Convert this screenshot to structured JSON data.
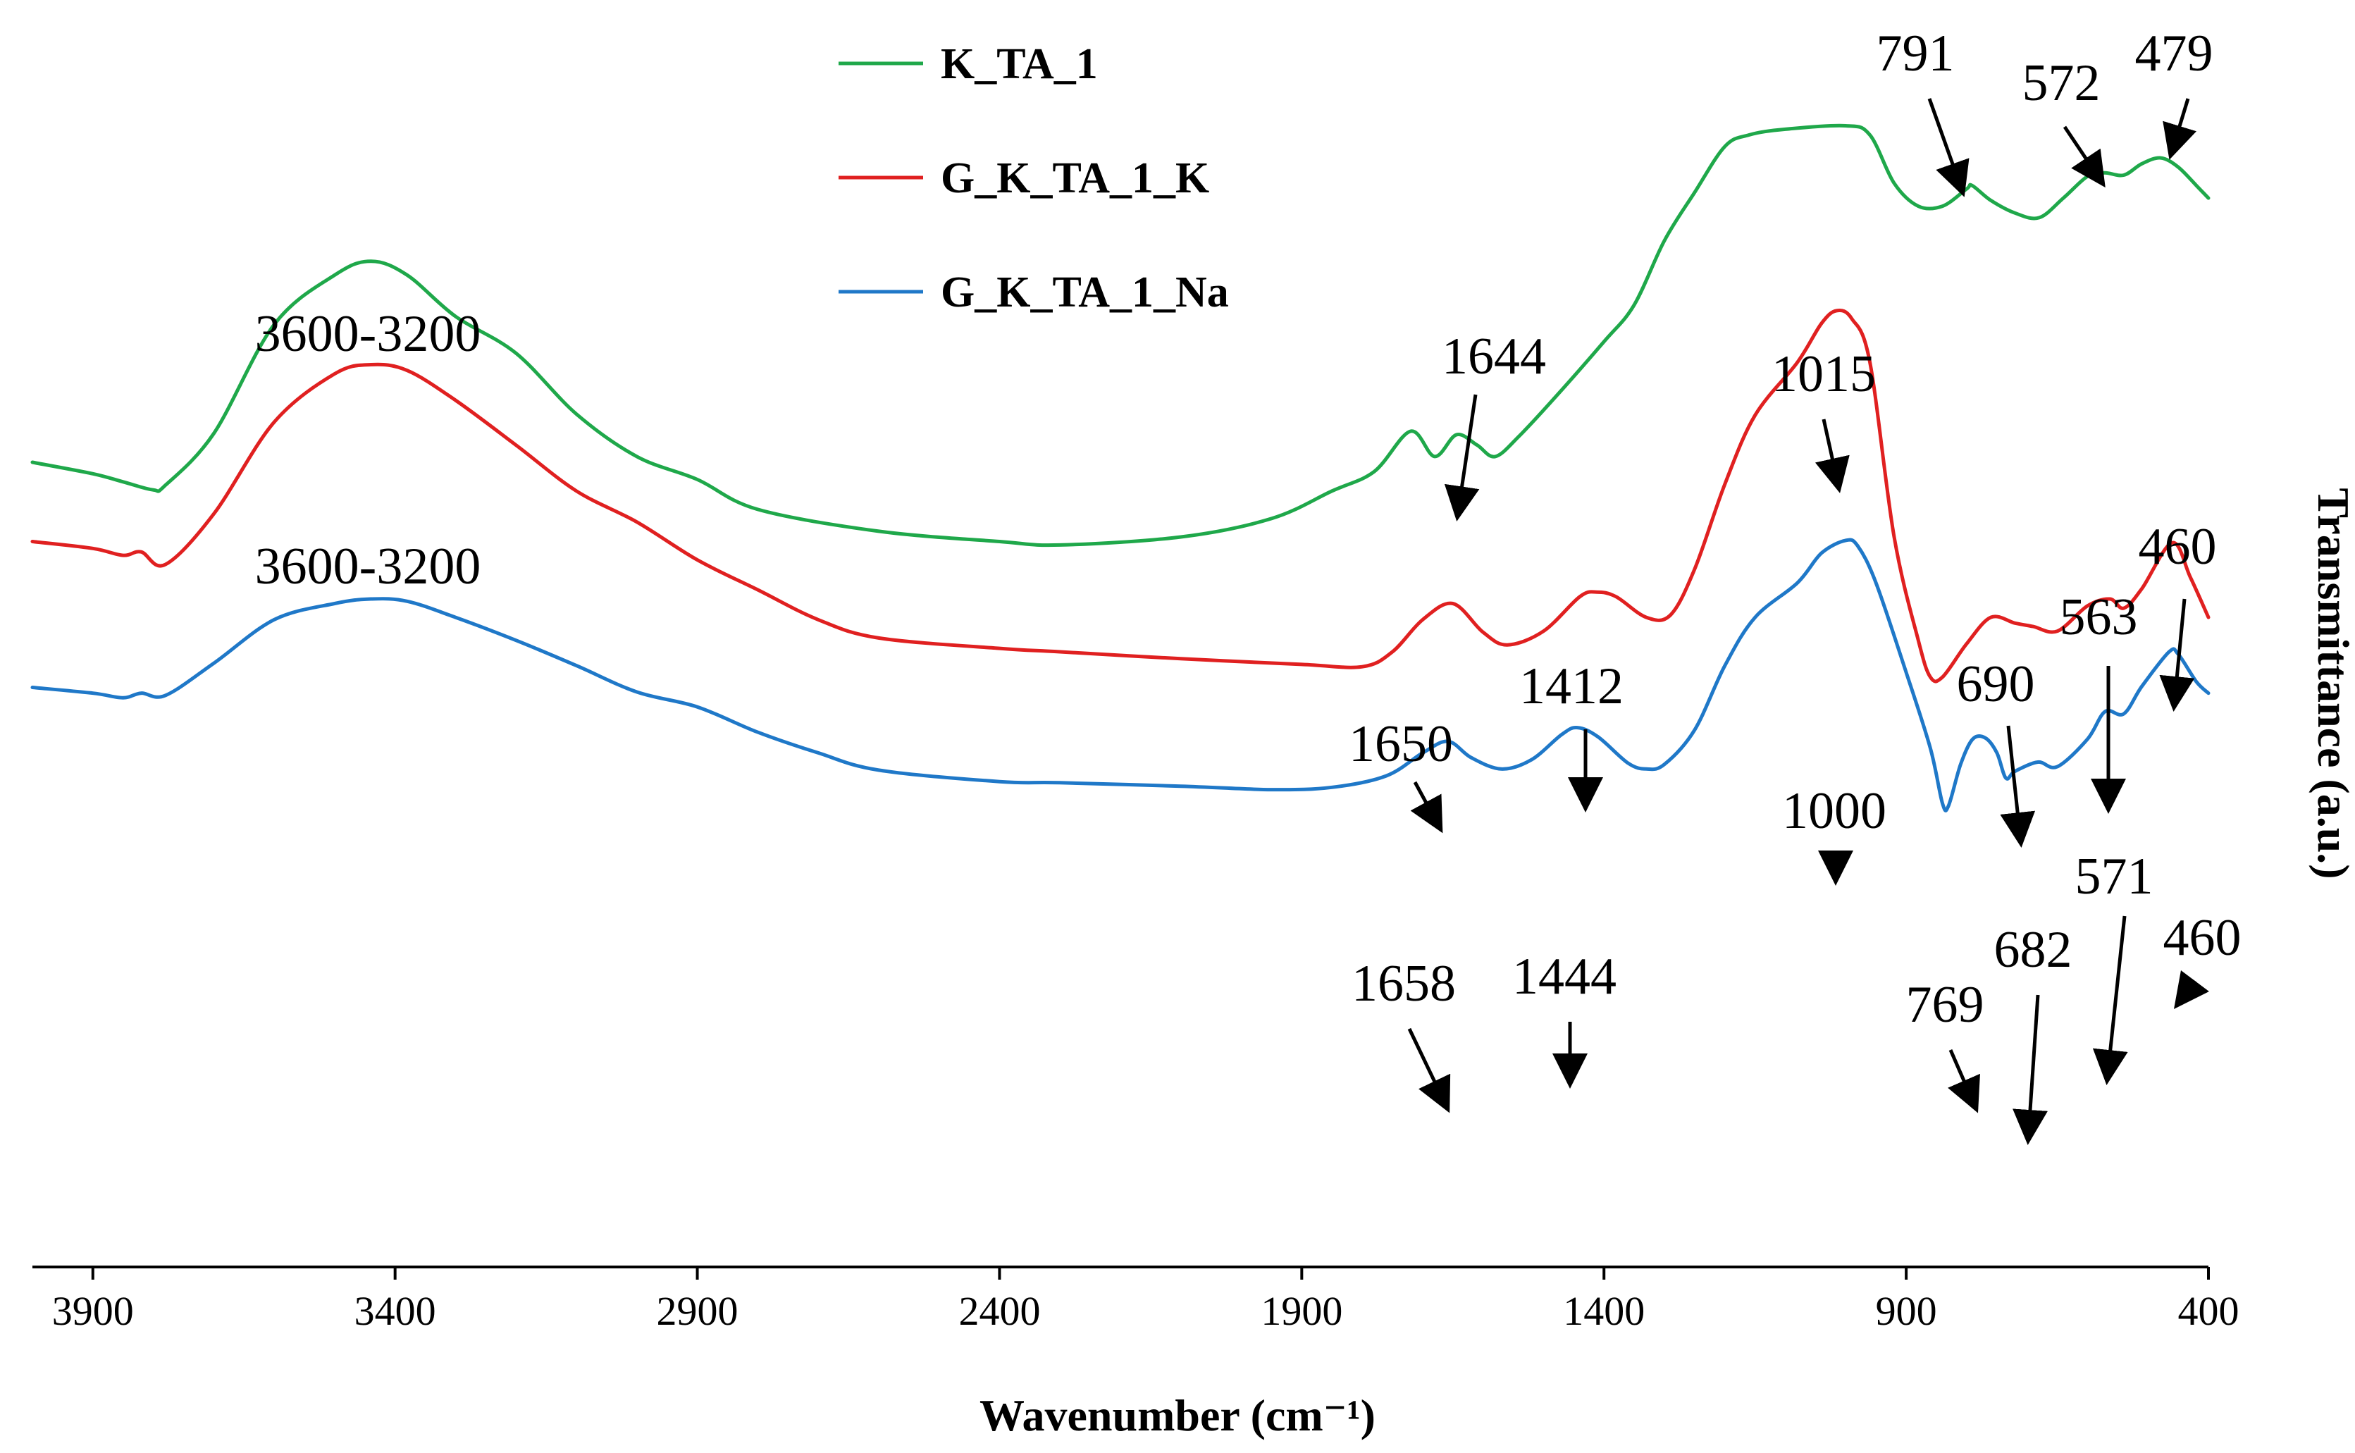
{
  "chart_data": {
    "type": "line",
    "title": "",
    "xlabel": "Wavenumber (cm⁻¹)",
    "ylabel": "Transmittance (a.u.)",
    "xlim": [
      4000,
      400
    ],
    "x_reversed": true,
    "x_ticks": [
      3900,
      3400,
      2900,
      2400,
      1900,
      1400,
      900,
      400
    ],
    "y_ticks": [],
    "grid": false,
    "legend_position": "top-center",
    "series": [
      {
        "name": "K_TA_1",
        "color": "#1fa84a",
        "points": [
          [
            4000,
            0.665
          ],
          [
            3900,
            0.655
          ],
          [
            3850,
            0.648
          ],
          [
            3800,
            0.641
          ],
          [
            3780,
            0.645
          ],
          [
            3700,
            0.69
          ],
          [
            3600,
            0.785
          ],
          [
            3500,
            0.828
          ],
          [
            3440,
            0.84
          ],
          [
            3380,
            0.828
          ],
          [
            3300,
            0.792
          ],
          [
            3200,
            0.76
          ],
          [
            3100,
            0.707
          ],
          [
            3000,
            0.67
          ],
          [
            2900,
            0.65
          ],
          [
            2800,
            0.624
          ],
          [
            2600,
            0.605
          ],
          [
            2400,
            0.596
          ],
          [
            2300,
            0.593
          ],
          [
            2100,
            0.6
          ],
          [
            1950,
            0.616
          ],
          [
            1850,
            0.64
          ],
          [
            1780,
            0.657
          ],
          [
            1720,
            0.692
          ],
          [
            1680,
            0.67
          ],
          [
            1644,
            0.689
          ],
          [
            1610,
            0.68
          ],
          [
            1580,
            0.67
          ],
          [
            1540,
            0.688
          ],
          [
            1480,
            0.722
          ],
          [
            1400,
            0.77
          ],
          [
            1350,
            0.802
          ],
          [
            1300,
            0.858
          ],
          [
            1250,
            0.9
          ],
          [
            1200,
            0.94
          ],
          [
            1160,
            0.95
          ],
          [
            1100,
            0.955
          ],
          [
            1000,
            0.958
          ],
          [
            960,
            0.95
          ],
          [
            920,
            0.908
          ],
          [
            880,
            0.888
          ],
          [
            840,
            0.888
          ],
          [
            800,
            0.903
          ],
          [
            791,
            0.906
          ],
          [
            760,
            0.893
          ],
          [
            720,
            0.882
          ],
          [
            680,
            0.878
          ],
          [
            640,
            0.895
          ],
          [
            600,
            0.914
          ],
          [
            572,
            0.917
          ],
          [
            540,
            0.915
          ],
          [
            510,
            0.925
          ],
          [
            479,
            0.93
          ],
          [
            450,
            0.922
          ],
          [
            420,
            0.906
          ],
          [
            400,
            0.895
          ]
        ]
      },
      {
        "name": "G_K_TA_1_K",
        "color": "#e02020",
        "points": [
          [
            4000,
            0.596
          ],
          [
            3900,
            0.59
          ],
          [
            3850,
            0.584
          ],
          [
            3820,
            0.587
          ],
          [
            3780,
            0.576
          ],
          [
            3700,
            0.62
          ],
          [
            3600,
            0.7
          ],
          [
            3500,
            0.742
          ],
          [
            3440,
            0.75
          ],
          [
            3380,
            0.745
          ],
          [
            3300,
            0.719
          ],
          [
            3200,
            0.68
          ],
          [
            3100,
            0.64
          ],
          [
            3000,
            0.613
          ],
          [
            2900,
            0.58
          ],
          [
            2800,
            0.554
          ],
          [
            2700,
            0.528
          ],
          [
            2600,
            0.512
          ],
          [
            2400,
            0.503
          ],
          [
            2300,
            0.5
          ],
          [
            2100,
            0.494
          ],
          [
            1900,
            0.489
          ],
          [
            1800,
            0.487
          ],
          [
            1750,
            0.5
          ],
          [
            1700,
            0.528
          ],
          [
            1650,
            0.542
          ],
          [
            1600,
            0.517
          ],
          [
            1560,
            0.506
          ],
          [
            1500,
            0.518
          ],
          [
            1440,
            0.548
          ],
          [
            1412,
            0.552
          ],
          [
            1380,
            0.548
          ],
          [
            1330,
            0.53
          ],
          [
            1290,
            0.532
          ],
          [
            1250,
            0.572
          ],
          [
            1200,
            0.646
          ],
          [
            1150,
            0.706
          ],
          [
            1080,
            0.752
          ],
          [
            1040,
            0.786
          ],
          [
            1015,
            0.797
          ],
          [
            990,
            0.79
          ],
          [
            960,
            0.752
          ],
          [
            920,
            0.6
          ],
          [
            880,
            0.51
          ],
          [
            860,
            0.478
          ],
          [
            840,
            0.478
          ],
          [
            800,
            0.507
          ],
          [
            760,
            0.53
          ],
          [
            720,
            0.525
          ],
          [
            690,
            0.522
          ],
          [
            650,
            0.518
          ],
          [
            600,
            0.54
          ],
          [
            563,
            0.546
          ],
          [
            540,
            0.538
          ],
          [
            510,
            0.555
          ],
          [
            460,
            0.595
          ],
          [
            430,
            0.565
          ],
          [
            400,
            0.53
          ]
        ]
      },
      {
        "name": "G_K_TA_1_Na",
        "color": "#1f78c8",
        "points": [
          [
            4000,
            0.469
          ],
          [
            3900,
            0.464
          ],
          [
            3850,
            0.46
          ],
          [
            3820,
            0.464
          ],
          [
            3780,
            0.462
          ],
          [
            3700,
            0.49
          ],
          [
            3600,
            0.528
          ],
          [
            3500,
            0.542
          ],
          [
            3440,
            0.546
          ],
          [
            3380,
            0.544
          ],
          [
            3300,
            0.53
          ],
          [
            3200,
            0.51
          ],
          [
            3100,
            0.488
          ],
          [
            3000,
            0.465
          ],
          [
            2900,
            0.452
          ],
          [
            2800,
            0.43
          ],
          [
            2700,
            0.412
          ],
          [
            2600,
            0.397
          ],
          [
            2400,
            0.387
          ],
          [
            2300,
            0.386
          ],
          [
            2100,
            0.383
          ],
          [
            1950,
            0.38
          ],
          [
            1850,
            0.382
          ],
          [
            1760,
            0.392
          ],
          [
            1700,
            0.412
          ],
          [
            1658,
            0.422
          ],
          [
            1620,
            0.408
          ],
          [
            1570,
            0.398
          ],
          [
            1520,
            0.406
          ],
          [
            1470,
            0.428
          ],
          [
            1444,
            0.434
          ],
          [
            1410,
            0.426
          ],
          [
            1360,
            0.403
          ],
          [
            1330,
            0.398
          ],
          [
            1300,
            0.402
          ],
          [
            1250,
            0.432
          ],
          [
            1200,
            0.488
          ],
          [
            1150,
            0.53
          ],
          [
            1080,
            0.56
          ],
          [
            1040,
            0.586
          ],
          [
            1000,
            0.597
          ],
          [
            980,
            0.592
          ],
          [
            950,
            0.56
          ],
          [
            900,
            0.482
          ],
          [
            860,
            0.416
          ],
          [
            840,
            0.368
          ],
          [
            830,
            0.366
          ],
          [
            810,
            0.402
          ],
          [
            790,
            0.424
          ],
          [
            769,
            0.425
          ],
          [
            750,
            0.412
          ],
          [
            735,
            0.39
          ],
          [
            720,
            0.396
          ],
          [
            682,
            0.404
          ],
          [
            650,
            0.4
          ],
          [
            600,
            0.424
          ],
          [
            571,
            0.448
          ],
          [
            540,
            0.446
          ],
          [
            510,
            0.47
          ],
          [
            465,
            0.5
          ],
          [
            450,
            0.498
          ],
          [
            420,
            0.474
          ],
          [
            400,
            0.464
          ]
        ]
      }
    ],
    "annotations": [
      {
        "series": "K_TA_1",
        "label": "3600-3200",
        "arrow": false
      },
      {
        "series": "K_TA_1",
        "label": "1644",
        "at": 1644,
        "arrow": true
      },
      {
        "series": "K_TA_1",
        "label": "791",
        "at": 791,
        "arrow": true
      },
      {
        "series": "K_TA_1",
        "label": "572",
        "at": 572,
        "arrow": true
      },
      {
        "series": "K_TA_1",
        "label": "479",
        "at": 479,
        "arrow": true
      },
      {
        "series": "G_K_TA_1_K",
        "label": "3600-3200",
        "arrow": false
      },
      {
        "series": "G_K_TA_1_K",
        "label": "1650",
        "at": 1650,
        "arrow": true
      },
      {
        "series": "G_K_TA_1_K",
        "label": "1412",
        "at": 1412,
        "arrow": true
      },
      {
        "series": "G_K_TA_1_K",
        "label": "1015",
        "at": 1015,
        "arrow": true
      },
      {
        "series": "G_K_TA_1_K",
        "label": "690",
        "at": 690,
        "arrow": true
      },
      {
        "series": "G_K_TA_1_K",
        "label": "563",
        "at": 563,
        "arrow": true
      },
      {
        "series": "G_K_TA_1_K",
        "label": "460",
        "at": 460,
        "arrow": true
      },
      {
        "series": "G_K_TA_1_Na",
        "label": "1658",
        "at": 1658,
        "arrow": true
      },
      {
        "series": "G_K_TA_1_Na",
        "label": "1444",
        "at": 1444,
        "arrow": true
      },
      {
        "series": "G_K_TA_1_Na",
        "label": "1000",
        "at": 1000,
        "arrow": true
      },
      {
        "series": "G_K_TA_1_Na",
        "label": "769",
        "at": 769,
        "arrow": true
      },
      {
        "series": "G_K_TA_1_Na",
        "label": "682",
        "at": 682,
        "arrow": true
      },
      {
        "series": "G_K_TA_1_Na",
        "label": "571",
        "at": 571,
        "arrow": true
      },
      {
        "series": "G_K_TA_1_Na",
        "label": "460",
        "at": 460,
        "arrow": true
      }
    ]
  }
}
